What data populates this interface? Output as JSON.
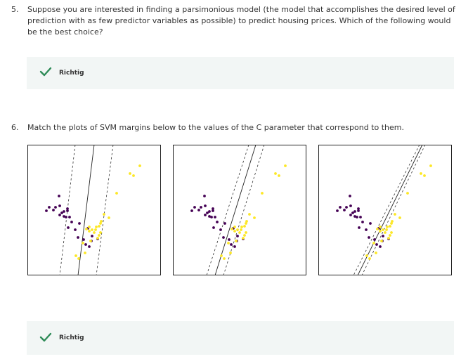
{
  "question5": {
    "number": "5.",
    "text": "Suppose you are interested in finding a parsimonious model (the model that accomplishes the desired level of prediction with as few predictor variables as possible) to predict housing prices. Which of the following would be the best choice?",
    "feedback": {
      "icon": "check-icon",
      "label": "Richtig"
    }
  },
  "question6": {
    "number": "6.",
    "text": "Match the plots of SVM margins below to the values of the C parameter that correspond to them.",
    "feedback": {
      "icon": "check-icon",
      "label": "Richtig"
    }
  },
  "colors": {
    "check": "#2e8b57",
    "feedback_bg": "#f2f6f5",
    "class_purple": "#440154",
    "class_yellow": "#fde725"
  }
}
